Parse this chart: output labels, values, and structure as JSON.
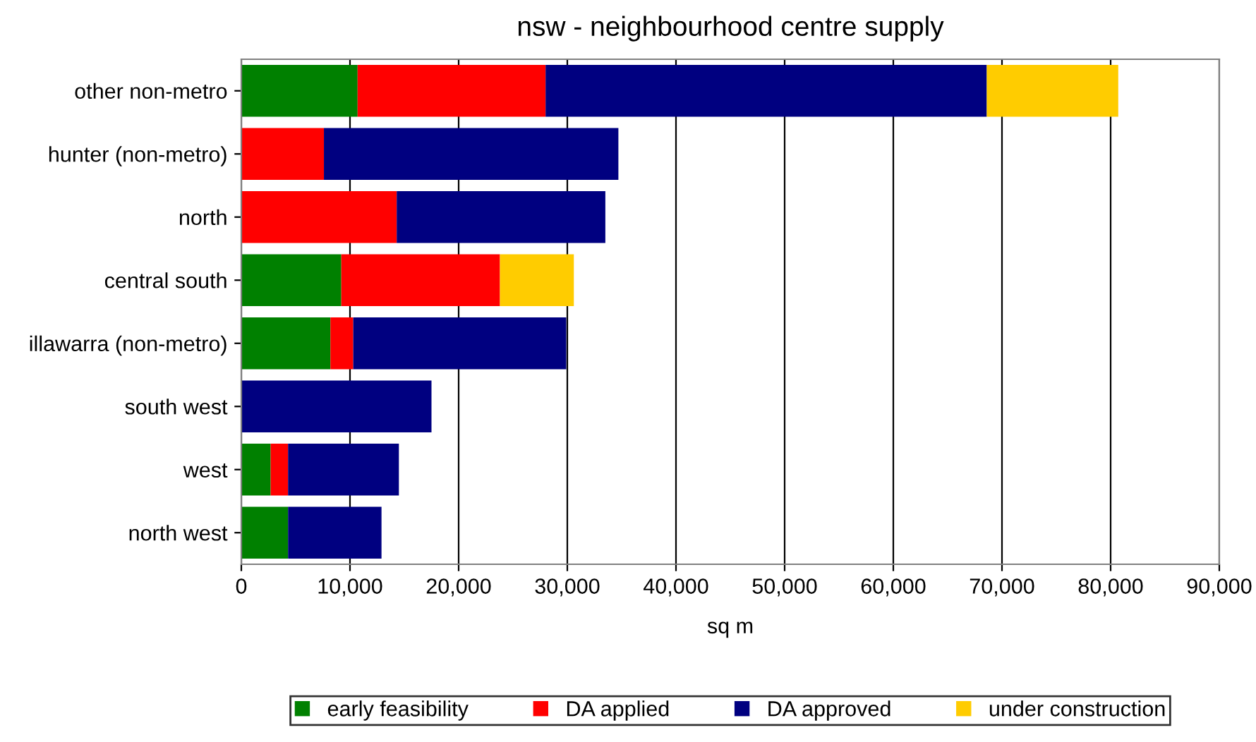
{
  "chart_data": {
    "type": "bar",
    "orientation": "horizontal",
    "stacked": true,
    "title": "nsw - neighbourhood centre supply",
    "xlabel": "sq m",
    "categories": [
      "other non-metro",
      "hunter (non-metro)",
      "north",
      "central south",
      "illawarra (non-metro)",
      "south west",
      "west",
      "north west"
    ],
    "series": [
      {
        "name": "early feasibility",
        "color": "#008000",
        "values": [
          10700,
          null,
          null,
          9200,
          8200,
          null,
          2700,
          4300
        ]
      },
      {
        "name": "DA applied",
        "color": "#ff0000",
        "values": [
          17300,
          7600,
          14300,
          14600,
          2100,
          null,
          1600,
          null
        ]
      },
      {
        "name": "DA approved",
        "color": "#000080",
        "values": [
          40600,
          27100,
          19200,
          null,
          19600,
          17500,
          10200,
          8600
        ]
      },
      {
        "name": "under construction",
        "color": "#ffcc00",
        "values": [
          12100,
          null,
          null,
          6800,
          null,
          null,
          null,
          null
        ]
      }
    ],
    "xlim": [
      0,
      90000
    ],
    "xticks": [
      0,
      {
        "value": 10000,
        "label": "10,000"
      },
      {
        "value": 20000,
        "label": "20,000"
      },
      {
        "value": 30000,
        "label": "30,000"
      },
      {
        "value": 40000,
        "label": "40,000"
      },
      {
        "value": 50000,
        "label": "50,000"
      },
      {
        "value": 60000,
        "label": "60,000"
      },
      {
        "value": 70000,
        "label": "70,000"
      },
      {
        "value": 80000,
        "label": "80,000"
      },
      {
        "value": 90000,
        "label": "90,000"
      }
    ],
    "grid": "x",
    "legend": "bottom"
  }
}
